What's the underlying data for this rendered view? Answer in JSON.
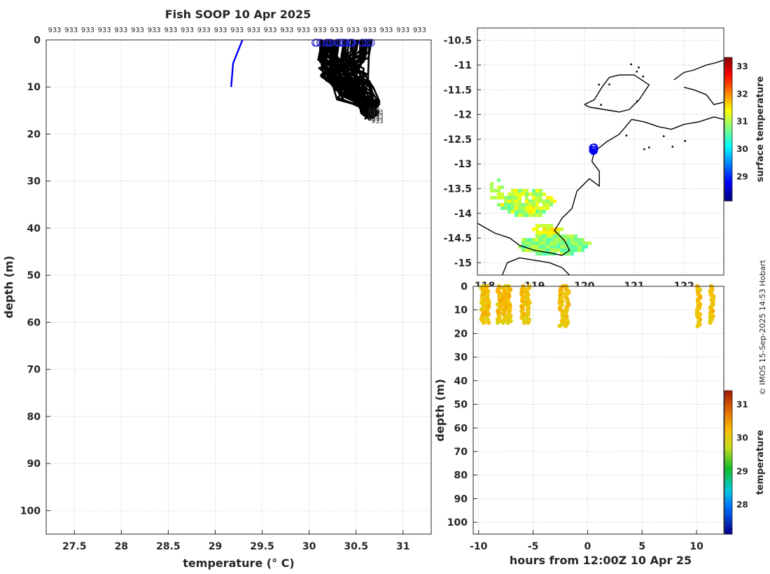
{
  "title": "Fish SOOP 10 Apr 2025",
  "credit": "© IMOS 15-Sep-2025 14:53 Hobart",
  "chart_data": [
    {
      "id": "profile",
      "type": "line",
      "xlabel": "temperature (° C)",
      "ylabel": "depth (m)",
      "xlim": [
        27.2,
        31.3
      ],
      "ylim": [
        105,
        0
      ],
      "xticks": [
        "27.5",
        "28",
        "28.5",
        "29",
        "29.5",
        "30",
        "30.5",
        "31"
      ],
      "yticks": [
        "0",
        "10",
        "20",
        "30",
        "40",
        "50",
        "60",
        "70",
        "80",
        "90",
        "100"
      ],
      "grid": true,
      "top_label": "933",
      "top_label_count": 23,
      "end_label": "933",
      "highlight_profile": {
        "color": "#0000ee",
        "points": [
          [
            29.29,
            0
          ],
          [
            29.19,
            5
          ],
          [
            29.17,
            10
          ]
        ]
      },
      "profile_color": "#000000",
      "profile_start_color": "#2020d0"
    },
    {
      "id": "map",
      "type": "heatmap",
      "xticks": [
        "118",
        "119",
        "120",
        "121",
        "122"
      ],
      "yticks": [
        "-10.5",
        "-11",
        "-11.5",
        "-12",
        "-12.5",
        "-13",
        "-13.5",
        "-14",
        "-14.5",
        "-15"
      ],
      "xlim": [
        117.85,
        122.8
      ],
      "ylim": [
        -15.25,
        -10.25
      ],
      "grid": true,
      "colorbar": {
        "label": "surface temperature",
        "ticks": [
          "29",
          "30",
          "31",
          "32",
          "33"
        ],
        "min": 28.1,
        "max": 33.3
      },
      "track_point": [
        120.2,
        -12.7
      ],
      "track_color": "#0000ee"
    },
    {
      "id": "timeseries",
      "type": "heatmap",
      "xlabel": "hours from 12:00Z 10 Apr 25",
      "ylabel": "depth (m)",
      "xlim": [
        -10.5,
        12.5
      ],
      "ylim": [
        105,
        0
      ],
      "xticks": [
        "-10",
        "-5",
        "0",
        "5",
        "10"
      ],
      "yticks": [
        "0",
        "10",
        "20",
        "30",
        "40",
        "50",
        "60",
        "70",
        "80",
        "90",
        "100"
      ],
      "grid": true,
      "colorbar": {
        "label": "temperature",
        "ticks": [
          "28",
          "29",
          "30",
          "31"
        ],
        "min": 27.1,
        "max": 31.4
      },
      "columns": [
        {
          "x": -9.6,
          "depth": 16
        },
        {
          "x": -9.2,
          "depth": 16
        },
        {
          "x": -8.1,
          "depth": 16
        },
        {
          "x": -7.6,
          "depth": 16
        },
        {
          "x": -7.2,
          "depth": 16
        },
        {
          "x": -5.9,
          "depth": 16
        },
        {
          "x": -5.5,
          "depth": 16
        },
        {
          "x": -2.4,
          "depth": 17
        },
        {
          "x": -1.9,
          "depth": 17
        },
        {
          "x": 10.2,
          "depth": 17
        },
        {
          "x": 11.4,
          "depth": 16
        }
      ]
    }
  ]
}
